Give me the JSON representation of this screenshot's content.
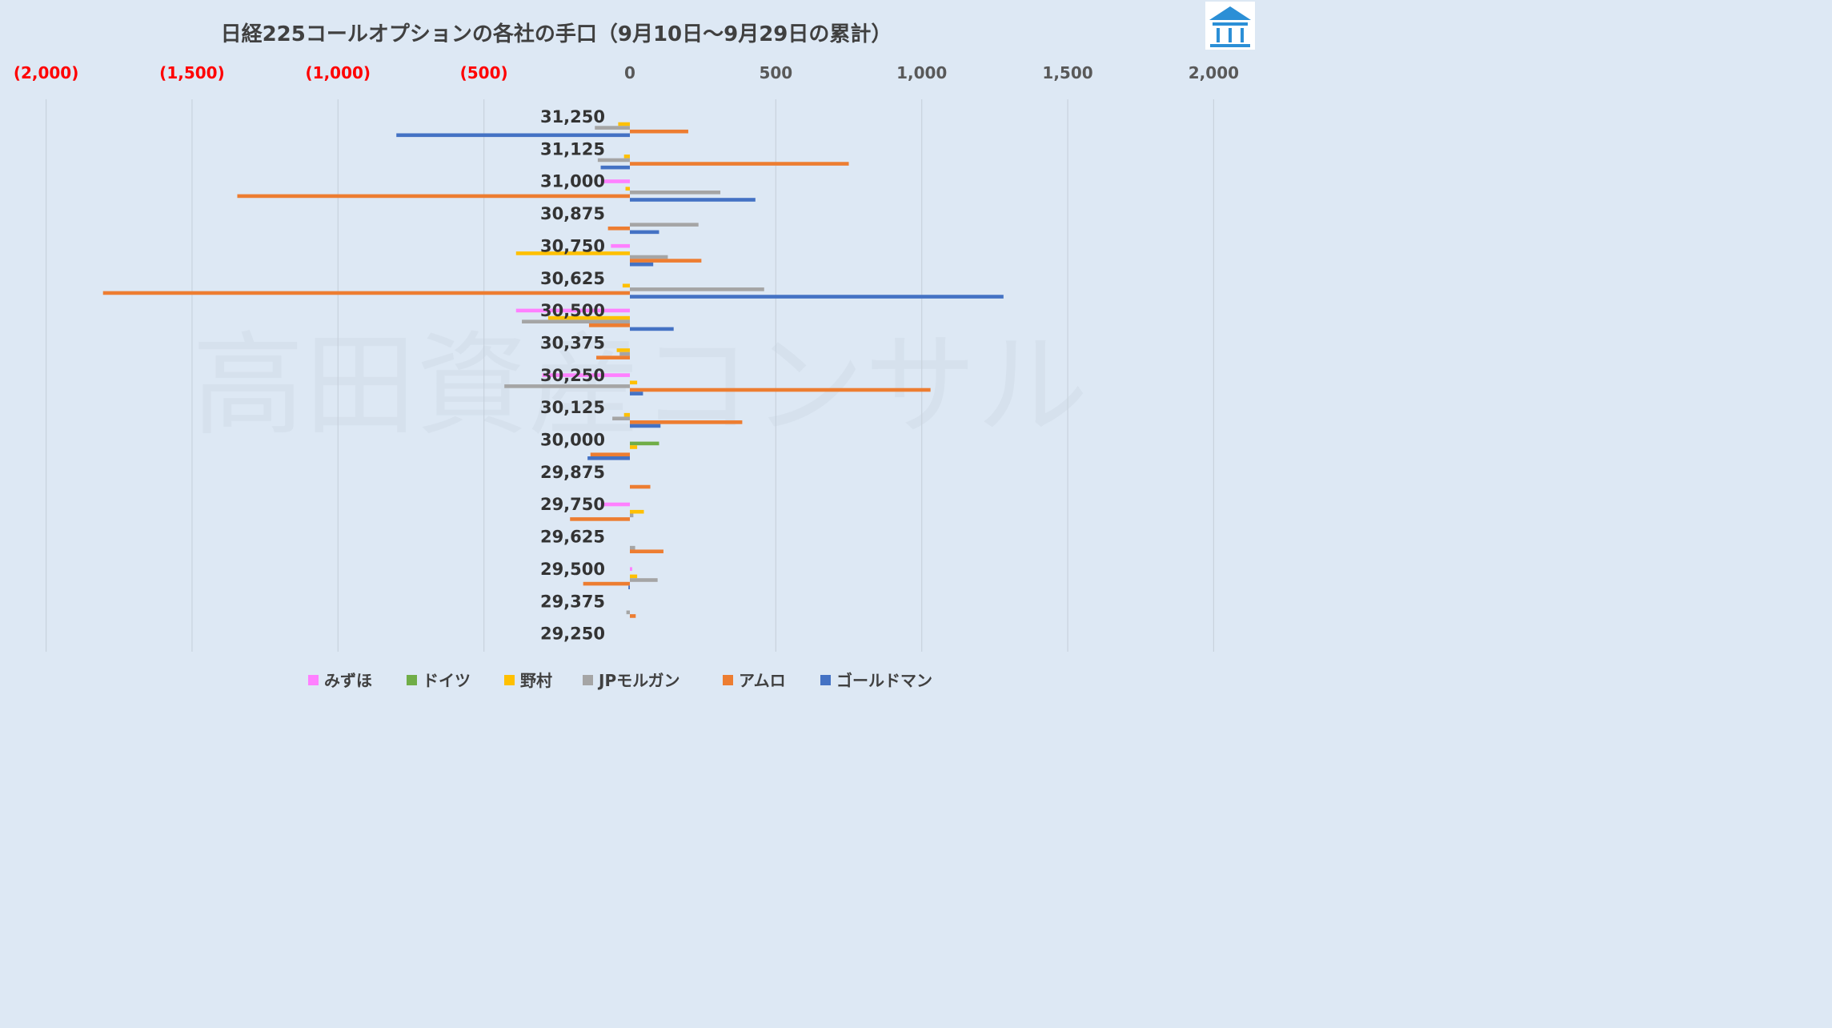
{
  "chart_data": {
    "type": "bar",
    "orientation": "horizontal",
    "title": "日経225コールオプションの各社の手口（9月10日〜9月29日の累計）",
    "watermark": "高田資産コンサル",
    "xlim": [
      -2000,
      2000
    ],
    "x_ticks": [
      {
        "value": -2000,
        "label": "(2,000)"
      },
      {
        "value": -1500,
        "label": "(1,500)"
      },
      {
        "value": -1000,
        "label": "(1,000)"
      },
      {
        "value": -500,
        "label": "(500)"
      },
      {
        "value": 0,
        "label": "0"
      },
      {
        "value": 500,
        "label": "500"
      },
      {
        "value": 1000,
        "label": "1,000"
      },
      {
        "value": 1500,
        "label": "1,500"
      },
      {
        "value": 2000,
        "label": "2,000"
      }
    ],
    "negative_tick_color": "#ff0000",
    "positive_tick_color": "#595959",
    "gridlines": true,
    "legend_position": "bottom",
    "categories": [
      "31,250",
      "31,125",
      "31,000",
      "30,875",
      "30,750",
      "30,625",
      "30,500",
      "30,375",
      "30,250",
      "30,125",
      "30,000",
      "29,875",
      "29,750",
      "29,625",
      "29,500",
      "29,375",
      "29,250"
    ],
    "series": [
      {
        "name": "みずほ",
        "color": "#ff80ff",
        "values": [
          0,
          0,
          -100,
          0,
          -65,
          0,
          -390,
          0,
          -300,
          0,
          0,
          0,
          -100,
          0,
          8,
          0,
          0
        ]
      },
      {
        "name": "ドイツ",
        "color": "#70ad47",
        "values": [
          0,
          0,
          0,
          0,
          0,
          0,
          0,
          0,
          0,
          0,
          100,
          0,
          0,
          0,
          0,
          0,
          0
        ]
      },
      {
        "name": "野村",
        "color": "#ffc000",
        "values": [
          -40,
          -20,
          -15,
          0,
          -390,
          -25,
          -280,
          -45,
          25,
          -20,
          25,
          0,
          48,
          0,
          25,
          0,
          0
        ]
      },
      {
        "name": "JPモルガン",
        "color": "#a5a5a5",
        "values": [
          -120,
          -110,
          310,
          235,
          130,
          460,
          -370,
          -35,
          -430,
          -60,
          0,
          0,
          12,
          18,
          95,
          -12,
          0
        ]
      },
      {
        "name": "アムロ",
        "color": "#ed7d31",
        "values": [
          200,
          750,
          -1345,
          -75,
          245,
          -1805,
          -140,
          -115,
          1030,
          385,
          -135,
          70,
          -205,
          115,
          -160,
          20,
          0
        ]
      },
      {
        "name": "ゴールドマン",
        "color": "#4472c4",
        "values": [
          -800,
          -100,
          430,
          100,
          80,
          1280,
          150,
          0,
          45,
          105,
          -145,
          0,
          0,
          0,
          -5,
          0,
          0
        ]
      }
    ]
  }
}
